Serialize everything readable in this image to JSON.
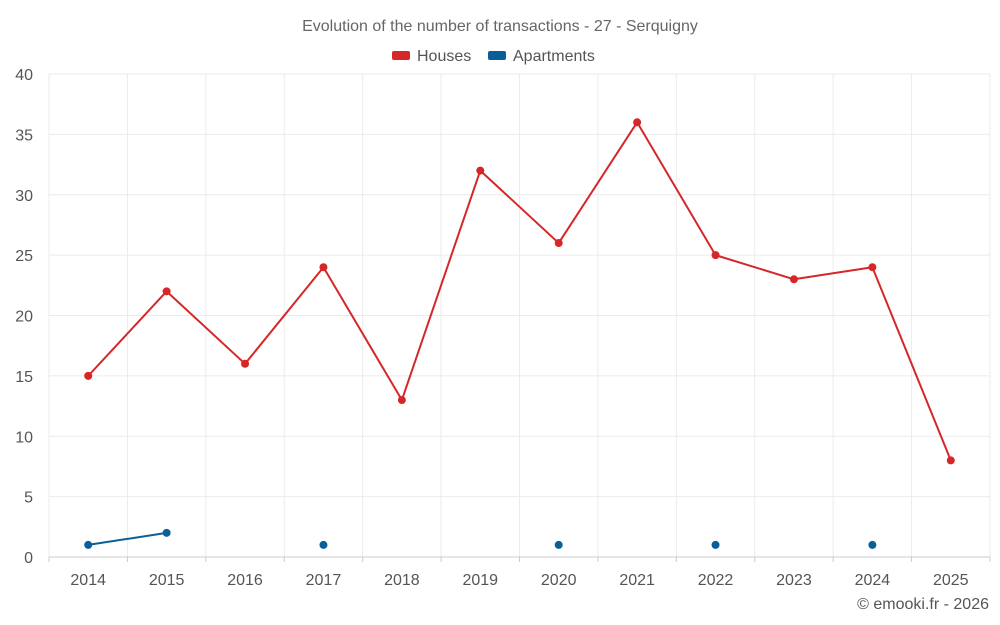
{
  "chart_data": {
    "type": "line",
    "title": "Evolution of the number of transactions - 27 - Serquigny",
    "categories": [
      "2014",
      "2015",
      "2016",
      "2017",
      "2018",
      "2019",
      "2020",
      "2021",
      "2022",
      "2023",
      "2024",
      "2025"
    ],
    "ylim": [
      0,
      40
    ],
    "yticks": [
      0,
      5,
      10,
      15,
      20,
      25,
      30,
      35,
      40
    ],
    "grid": true,
    "legend_position": "top-center",
    "series": [
      {
        "name": "Houses",
        "color": "#d62728",
        "values": [
          15,
          22,
          16,
          24,
          13,
          32,
          26,
          36,
          25,
          23,
          24,
          8
        ]
      },
      {
        "name": "Apartments",
        "color": "#0b5f96",
        "values": [
          1,
          2,
          null,
          1,
          null,
          null,
          1,
          null,
          1,
          null,
          1,
          null
        ]
      }
    ]
  },
  "credit": "© emooki.fr - 2026"
}
